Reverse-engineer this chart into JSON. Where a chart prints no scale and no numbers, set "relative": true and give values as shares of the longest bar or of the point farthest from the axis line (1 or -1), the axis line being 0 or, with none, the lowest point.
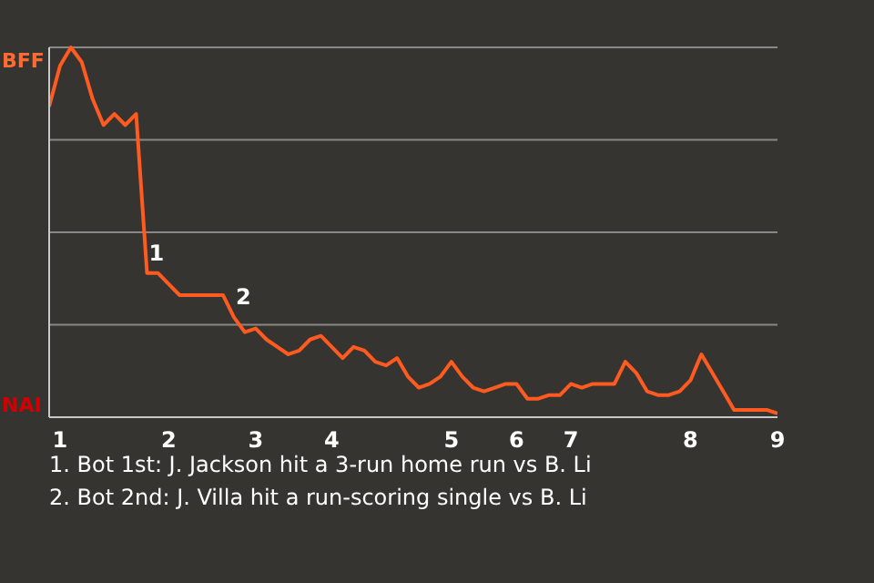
{
  "chart_data": {
    "type": "line",
    "relative": true,
    "categories": [
      null,
      "1",
      null,
      null,
      null,
      null,
      null,
      null,
      null,
      null,
      null,
      "2",
      null,
      null,
      null,
      null,
      null,
      null,
      null,
      "3",
      null,
      null,
      null,
      null,
      null,
      null,
      "4",
      null,
      null,
      null,
      null,
      null,
      null,
      null,
      null,
      null,
      null,
      "5",
      null,
      null,
      null,
      null,
      null,
      "6",
      null,
      null,
      null,
      null,
      "7",
      null,
      null,
      null,
      null,
      null,
      null,
      null,
      null,
      null,
      null,
      "8",
      null,
      null,
      null,
      null,
      null,
      null,
      null,
      "9"
    ],
    "grid": "y",
    "legend": false,
    "marker": "none",
    "line_style": "solid",
    "series": [
      {
        "color": "#ff5a1f",
        "values": [
          0.84,
          0.95,
          1,
          0.96,
          0.86,
          0.79,
          0.82,
          0.79,
          0.82,
          0.39,
          0.39,
          0.36,
          0.33,
          0.33,
          0.33,
          0.33,
          0.33,
          0.27,
          0.23,
          0.24,
          0.21,
          0.19,
          0.17,
          0.18,
          0.21,
          0.22,
          0.19,
          0.16,
          0.19,
          0.18,
          0.15,
          0.14,
          0.16,
          0.11,
          0.08,
          0.09,
          0.11,
          0.15,
          0.11,
          0.08,
          0.07,
          0.08,
          0.09,
          0.09,
          0.05,
          0.05,
          0.06,
          0.06,
          0.09,
          0.08,
          0.09,
          0.09,
          0.09,
          0.15,
          0.12,
          0.07,
          0.06,
          0.06,
          0.07,
          0.1,
          0.17,
          0.12,
          0.07,
          0.02,
          0.02,
          0.02,
          0.02,
          0.01
        ]
      }
    ],
    "annotations": [
      "BFF",
      "NAI",
      {
        "text": "1",
        "y": 0.39
      },
      {
        "text": "2",
        "y": 0.27
      },
      "1. Bot 1st: J. Jackson hit a 3-run home run vs B. Li",
      "2. Bot 2nd: J. Villa hit a run-scoring single vs B. Li"
    ]
  }
}
